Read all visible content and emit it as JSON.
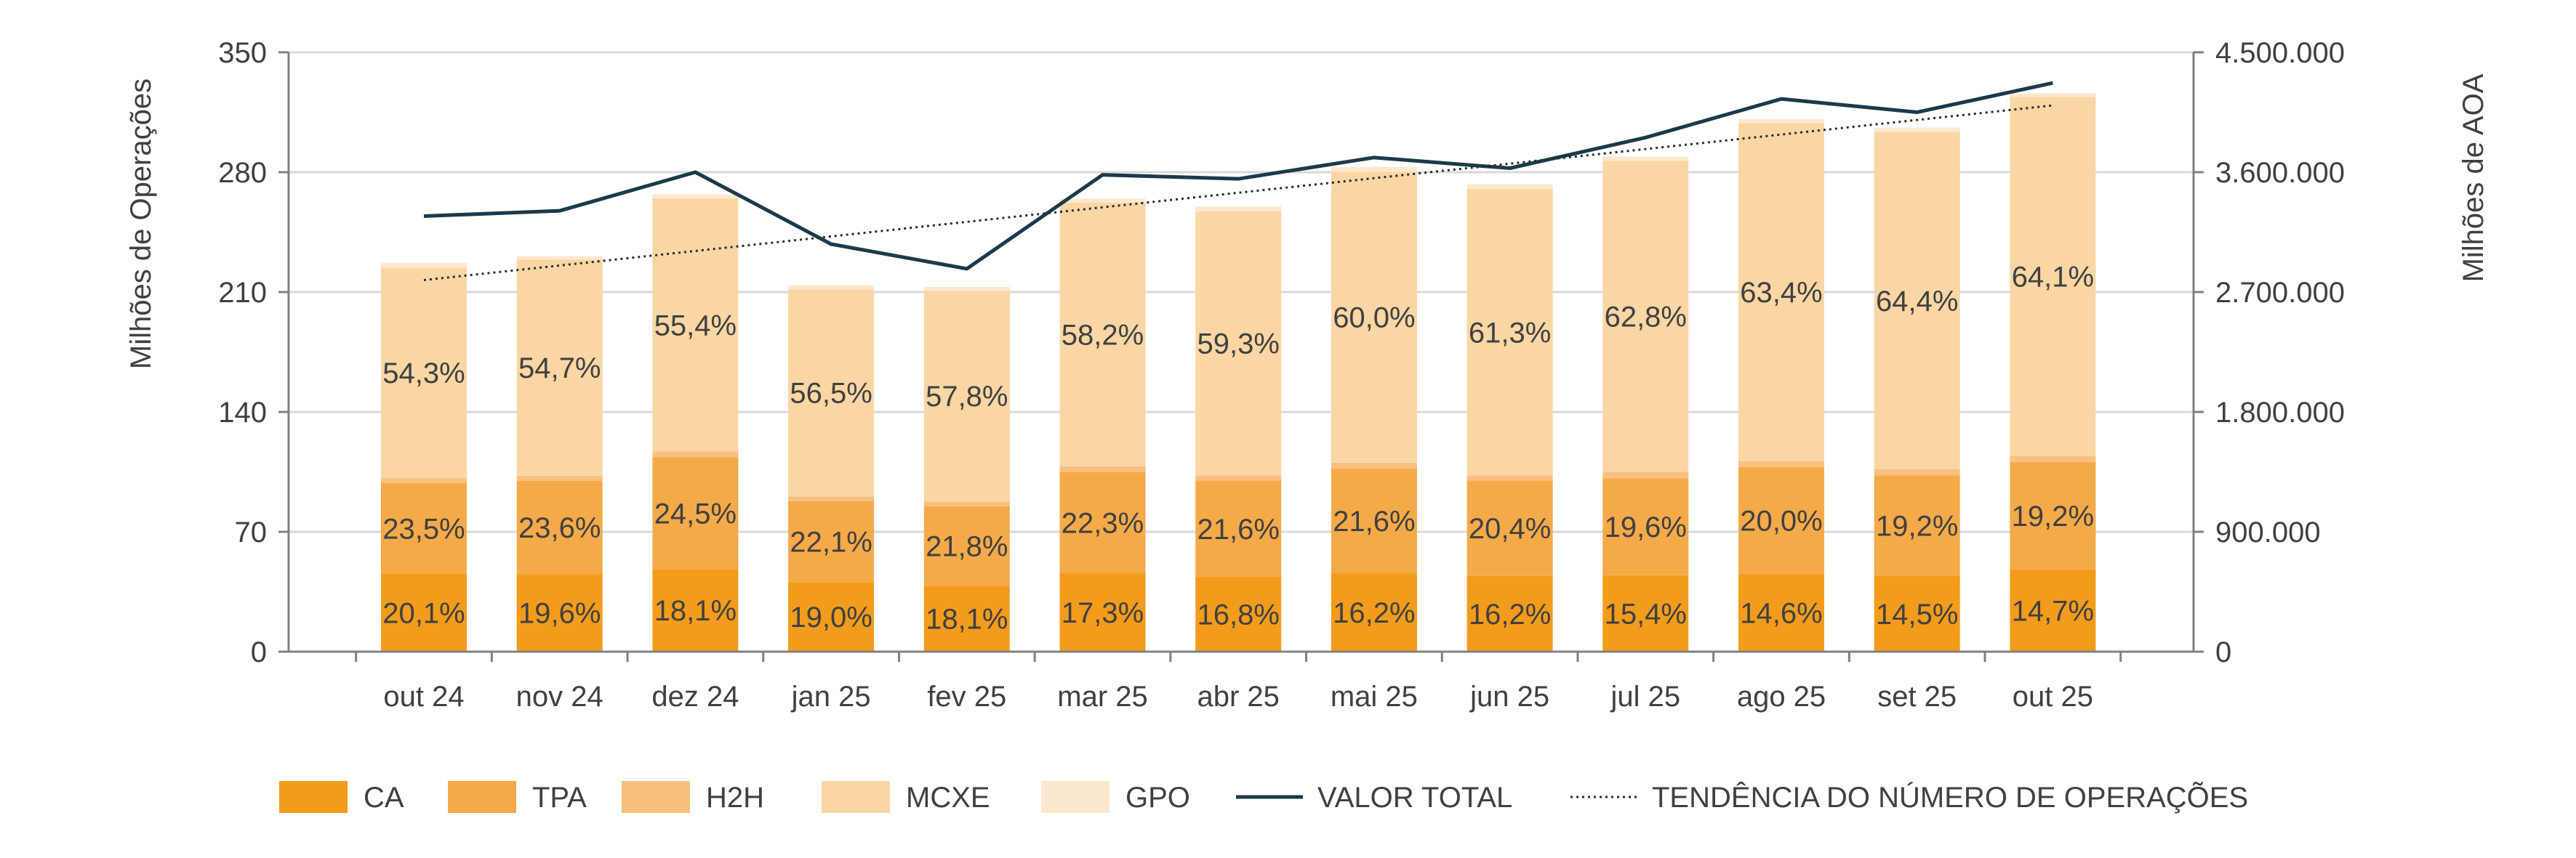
{
  "chart_data": {
    "type": "bar",
    "stacked": true,
    "categories": [
      "out 24",
      "nov 24",
      "dez 24",
      "jan 25",
      "fev 25",
      "mar 25",
      "abr 25",
      "mai 25",
      "jun 25",
      "jul 25",
      "ago 25",
      "set 25",
      "out 25"
    ],
    "ylabel": "Milhões de Operações",
    "ylabel_right": "Milhões de AOA",
    "ylim": [
      0,
      350
    ],
    "ylim_right": [
      0,
      4500000
    ],
    "yticks": [
      "0",
      "70",
      "140",
      "210",
      "280",
      "350"
    ],
    "yticks_right": [
      "0",
      "900.000",
      "1.800.000",
      "2.700.000",
      "3.600.000",
      "4.500.000"
    ],
    "grid": true,
    "legend_position": "bottom",
    "colors": {
      "CA": "#F39C1B",
      "TPA": "#F5AA49",
      "H2H": "#F8C07F",
      "MCXE": "#FAD6A5",
      "GPO": "#FCE8CE",
      "VALOR TOTAL": "#1B3A4B",
      "trend": "#2B2B2B"
    },
    "series": [
      {
        "name": "CA",
        "values": [
          45.4,
          45.2,
          48.2,
          40.6,
          38.5,
          45.8,
          43.7,
          45.8,
          44.2,
          44.6,
          45.5,
          44.3,
          48.0
        ],
        "labels": [
          "20,1%",
          "19,6%",
          "18,1%",
          "19,0%",
          "18,1%",
          "17,3%",
          "16,8%",
          "16,2%",
          "16,2%",
          "15,4%",
          "14,6%",
          "14,5%",
          "14,7%"
        ]
      },
      {
        "name": "TPA",
        "values": [
          53.1,
          54.5,
          65.3,
          47.3,
          46.4,
          59.0,
          56.2,
          61.1,
          55.7,
          56.7,
          62.3,
          58.7,
          62.8
        ],
        "labels": [
          "23,5%",
          "23,6%",
          "24,5%",
          "22,1%",
          "21,8%",
          "22,3%",
          "21,6%",
          "21,6%",
          "20,4%",
          "19,6%",
          "20,0%",
          "19,2%",
          "19,2%"
        ]
      },
      {
        "name": "H2H",
        "values": [
          3.0,
          3.0,
          3.5,
          2.8,
          2.8,
          3.5,
          3.0,
          3.5,
          3.0,
          3.5,
          3.5,
          3.5,
          3.5
        ],
        "labels": []
      },
      {
        "name": "MCXE",
        "values": [
          122.7,
          126.3,
          147.6,
          120.9,
          123.1,
          153.9,
          154.2,
          169.8,
          167.3,
          181.8,
          197.4,
          196.9,
          209.7
        ],
        "labels": [
          "54,3%",
          "54,7%",
          "55,4%",
          "56,5%",
          "57,8%",
          "58,2%",
          "59,3%",
          "60,0%",
          "61,3%",
          "62,8%",
          "63,4%",
          "64,4%",
          "64,1%"
        ]
      },
      {
        "name": "GPO",
        "values": [
          2.8,
          2.0,
          2.4,
          2.4,
          2.2,
          2.3,
          2.9,
          2.8,
          2.8,
          2.4,
          2.3,
          2.6,
          2.0
        ],
        "labels": []
      }
    ],
    "line_series": {
      "name": "VALOR TOTAL",
      "axis": "right",
      "values": [
        3270000,
        3310000,
        3600000,
        3060000,
        2875000,
        3580000,
        3550000,
        3710000,
        3630000,
        3860000,
        4150000,
        4050000,
        4270000
      ]
    },
    "trend_series": {
      "name": "TENDÊNCIA DO NÚMERO DE OPERAÇÕES",
      "axis": "left",
      "start": 217,
      "end": 319
    },
    "legend": [
      "CA",
      "TPA",
      "H2H",
      "MCXE",
      "GPO",
      "VALOR TOTAL",
      "TENDÊNCIA DO NÚMERO DE OPERAÇÕES"
    ]
  }
}
